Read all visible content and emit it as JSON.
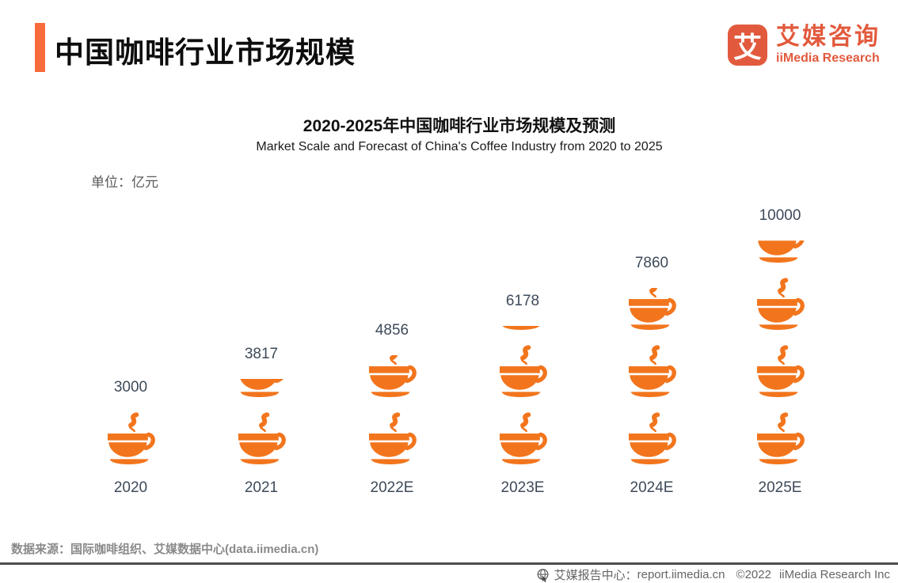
{
  "header": {
    "title": "中国咖啡行业市场规模",
    "logo": {
      "symbol": "艾",
      "name_cn": "艾媒咨询",
      "name_en": "iiMedia Research"
    }
  },
  "chart": {
    "unit_label": "单位：亿元"
  },
  "chart_data": {
    "type": "pictogram-bar",
    "title": "2020-2025年中国咖啡行业市场规模及预测",
    "subtitle": "Market Scale and Forecast of China's Coffee Industry from 2020 to 2025",
    "unit": "亿元",
    "categories": [
      "2020",
      "2021",
      "2022E",
      "2023E",
      "2024E",
      "2025E"
    ],
    "values": [
      3000,
      3817,
      4856,
      6178,
      7860,
      10000
    ],
    "value_labels": [
      "3000",
      "3817",
      "4856",
      "6178",
      "7860",
      "10000"
    ],
    "icon": "coffee-cup",
    "units_per_icon": 3000,
    "icon_color": "#F2751D",
    "label_color": "#3D4A59",
    "legend_position": "none",
    "grid": false
  },
  "footer": {
    "source": "数据来源：国际咖啡组织、艾媒数据中心(data.iimedia.cn)",
    "report_center": "艾媒报告中心：",
    "report_url": "report.iimedia.cn",
    "copyright": "©2022",
    "company": "iiMedia Research Inc"
  }
}
